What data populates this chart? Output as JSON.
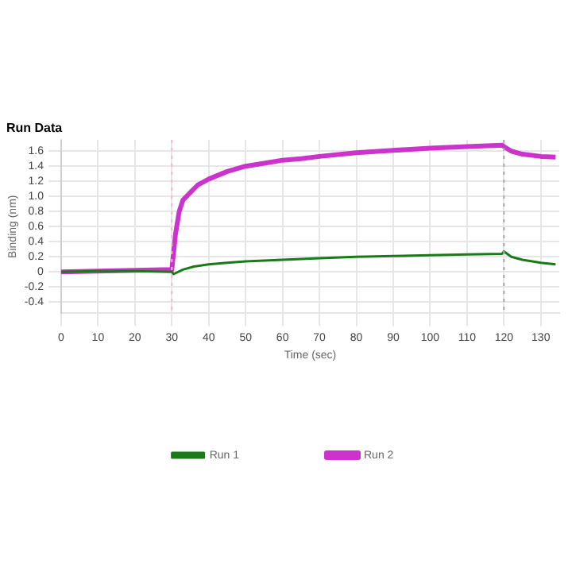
{
  "chart_data": {
    "type": "line",
    "title": "Run Data",
    "xlabel": "Time (sec)",
    "ylabel": "Binding (nm)",
    "xlim": [
      0,
      135
    ],
    "ylim": [
      -0.55,
      1.75
    ],
    "xticks": [
      0,
      10,
      20,
      30,
      40,
      50,
      60,
      70,
      80,
      90,
      100,
      110,
      120,
      130
    ],
    "yticks": [
      -0.4,
      -0.2,
      0,
      0.2,
      0.4,
      {
        "value": 0.6,
        "label": "0.6"
      },
      {
        "value": 0.8,
        "label": "0.8"
      },
      {
        "value": 1,
        "label": "1.0"
      },
      1.2,
      1.4,
      1.6
    ],
    "grid": true,
    "legend": "bottom",
    "marker": "none",
    "line_style": "solid",
    "ref_lines": [
      {
        "axis": "x",
        "value": 30,
        "color": "#f4b8c8",
        "line_style": "dotted"
      },
      {
        "axis": "x",
        "value": 120,
        "color": "#aaaaaa",
        "line_style": "dotted"
      }
    ],
    "series": [
      {
        "name": "Run 1",
        "color": "#1a7a1a",
        "x": [
          0,
          10,
          20,
          30,
          30.5,
          33,
          36,
          40,
          45,
          50,
          60,
          70,
          80,
          90,
          100,
          110,
          119.5,
          120,
          122,
          125,
          130,
          134
        ],
        "values": [
          0,
          0.01,
          0.01,
          0,
          -0.03,
          0.03,
          0.07,
          0.1,
          0.12,
          0.14,
          0.16,
          0.18,
          0.2,
          0.21,
          0.22,
          0.23,
          0.24,
          0.27,
          0.2,
          0.16,
          0.12,
          0.1
        ]
      },
      {
        "name": "Run 2",
        "color": "#cc33cc",
        "x": [
          0,
          10,
          20,
          30,
          31,
          32,
          33,
          35,
          37,
          40,
          45,
          50,
          55,
          60,
          65,
          70,
          80,
          90,
          100,
          110,
          119.5,
          120,
          122,
          125,
          130,
          134
        ],
        "values": [
          0,
          0.01,
          0.02,
          0.03,
          0.5,
          0.8,
          0.95,
          1.05,
          1.15,
          1.23,
          1.33,
          1.4,
          1.44,
          1.48,
          1.5,
          1.53,
          1.58,
          1.61,
          1.64,
          1.66,
          1.68,
          1.66,
          1.6,
          1.56,
          1.53,
          1.52
        ]
      }
    ]
  }
}
